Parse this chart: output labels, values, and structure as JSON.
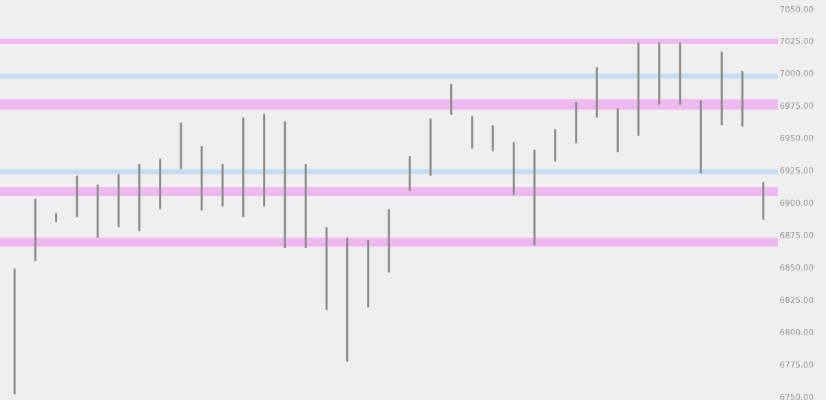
{
  "chart_data": {
    "type": "bar",
    "categories": [
      null,
      null,
      null,
      null,
      null,
      null,
      null,
      null,
      null,
      null,
      null,
      null,
      null,
      null,
      null,
      null,
      null,
      null,
      null,
      null,
      null,
      null,
      null,
      null,
      null,
      null,
      null,
      null,
      null,
      null,
      null,
      null,
      null,
      null,
      null,
      null,
      null
    ],
    "base": [
      6752,
      6855,
      6885,
      6889,
      6873,
      6881,
      6878,
      6895,
      6926,
      6894,
      6897,
      6889,
      6897,
      6865,
      6865,
      6817,
      6777,
      6819,
      6846,
      6909,
      6921,
      6968,
      6942,
      6940,
      6906,
      6867,
      6932,
      6946,
      6966,
      6939,
      6952,
      6976,
      6976,
      6923,
      6960,
      6959,
      6887
    ],
    "values": [
      97,
      48,
      7,
      32,
      41,
      41,
      52,
      39,
      36,
      50,
      33,
      77,
      72,
      98,
      65,
      64,
      96,
      52,
      49,
      27,
      44,
      24,
      25,
      20,
      41,
      74,
      25,
      32,
      39,
      34,
      72,
      48,
      48,
      56,
      57,
      43,
      29
    ],
    "color": "#8a8a8a",
    "ylim": [
      6750,
      7050
    ],
    "yticks": [
      {
        "value": 6750,
        "label": "6750.00"
      },
      {
        "value": 6775,
        "label": "6775.00"
      },
      {
        "value": 6800,
        "label": "6800.00"
      },
      {
        "value": 6825,
        "label": "6825.00"
      },
      {
        "value": 6850,
        "label": "6850.00"
      },
      {
        "value": 6875,
        "label": "6875.00"
      },
      {
        "value": 6900,
        "label": "6900.00"
      },
      {
        "value": 6925,
        "label": "6925.00"
      },
      {
        "value": 6950,
        "label": "6950.00"
      },
      {
        "value": 6975,
        "label": "6975.00"
      },
      {
        "value": 7000,
        "label": "7000.00"
      },
      {
        "value": 7025,
        "label": "7025.00"
      },
      {
        "value": 7050,
        "label": "7050.00"
      }
    ],
    "bands": [
      {
        "axis": "y",
        "from": 7023,
        "to": 7027,
        "color": "#f0b8f0"
      },
      {
        "axis": "y",
        "from": 6972,
        "to": 6980,
        "color": "#f0b8f0"
      },
      {
        "axis": "y",
        "from": 6996,
        "to": 7000,
        "color": "#c5dcf2"
      },
      {
        "axis": "y",
        "from": 6922,
        "to": 6926,
        "color": "#c5dcf2"
      },
      {
        "axis": "y",
        "from": 6905,
        "to": 6912,
        "color": "#f0b8f0"
      },
      {
        "axis": "y",
        "from": 6866,
        "to": 6873,
        "color": "#f0b8f0"
      }
    ],
    "legend": false
  }
}
